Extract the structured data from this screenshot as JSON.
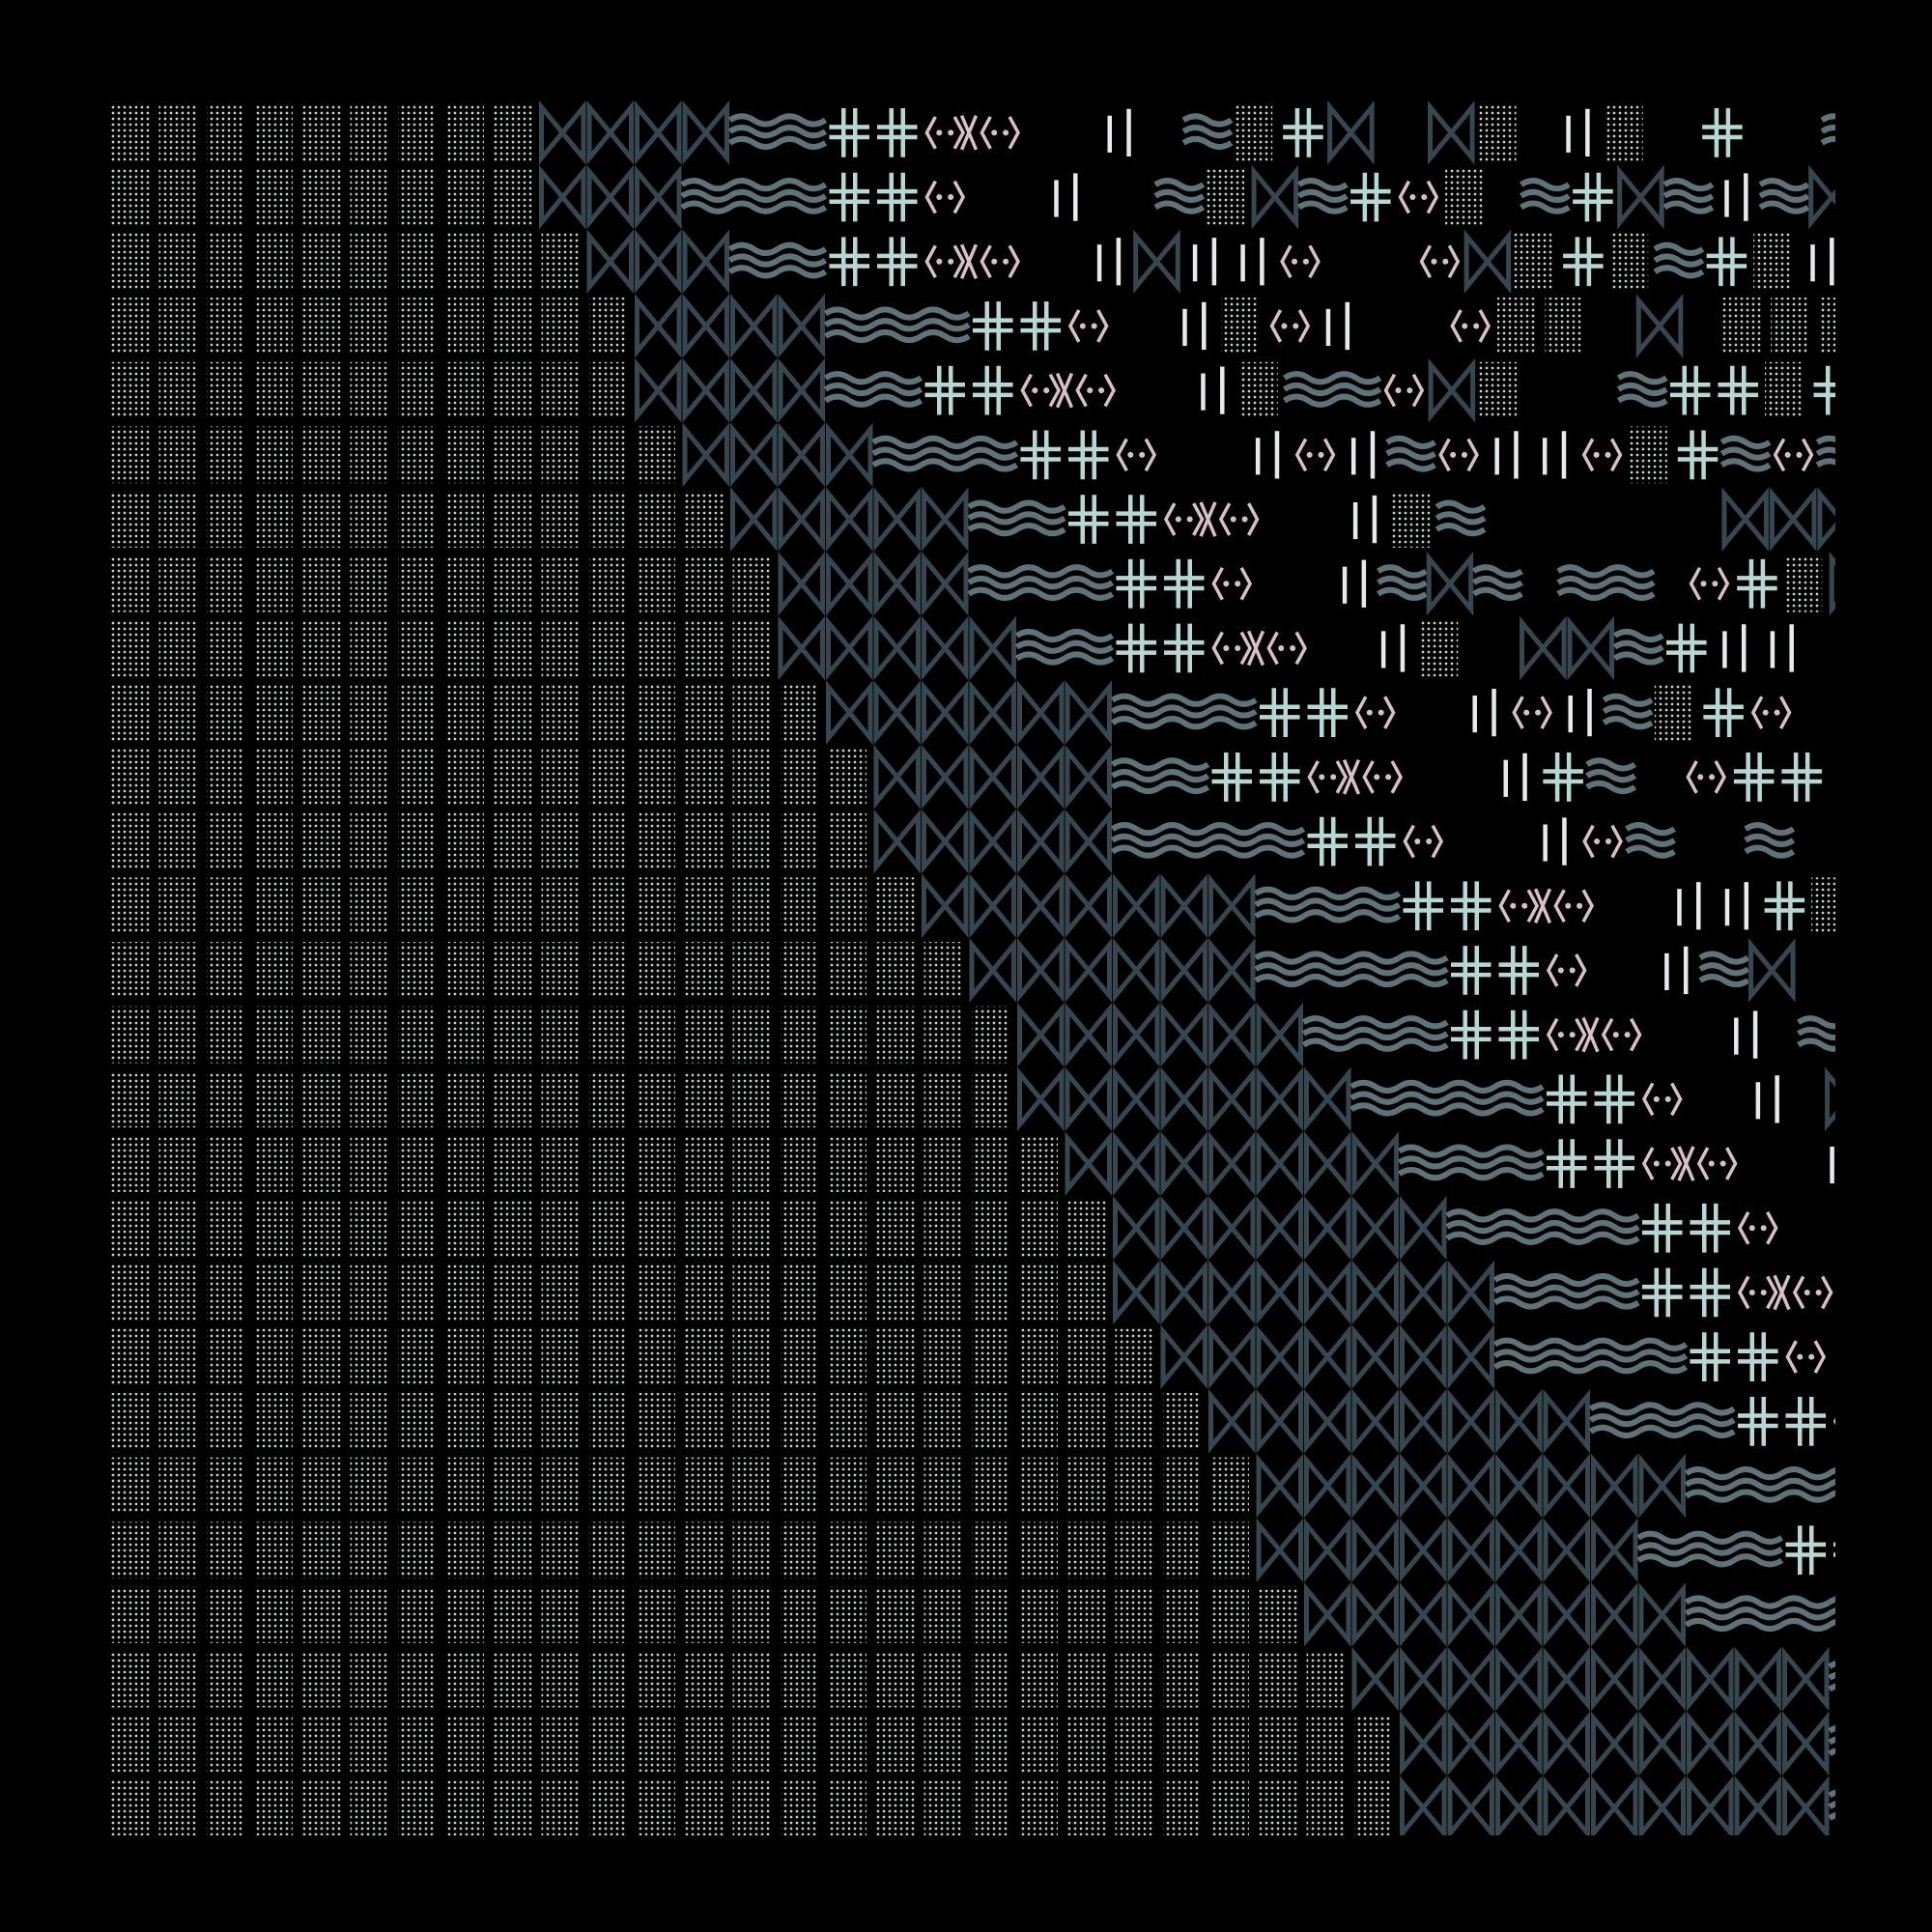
{
  "background": "#000000",
  "palette": {
    "dots": "#c9cfcf",
    "bowtie": "#37474f",
    "wave": "#5f7479",
    "cross": "#b6d7d2",
    "bracket": "#d8c0c9",
    "bar": "#e6eaea"
  },
  "glyph_types": [
    "dots-block",
    "bowtie",
    "wave",
    "double-cross",
    "angle-brackets",
    "x-mark",
    "vertical-bars"
  ]
}
